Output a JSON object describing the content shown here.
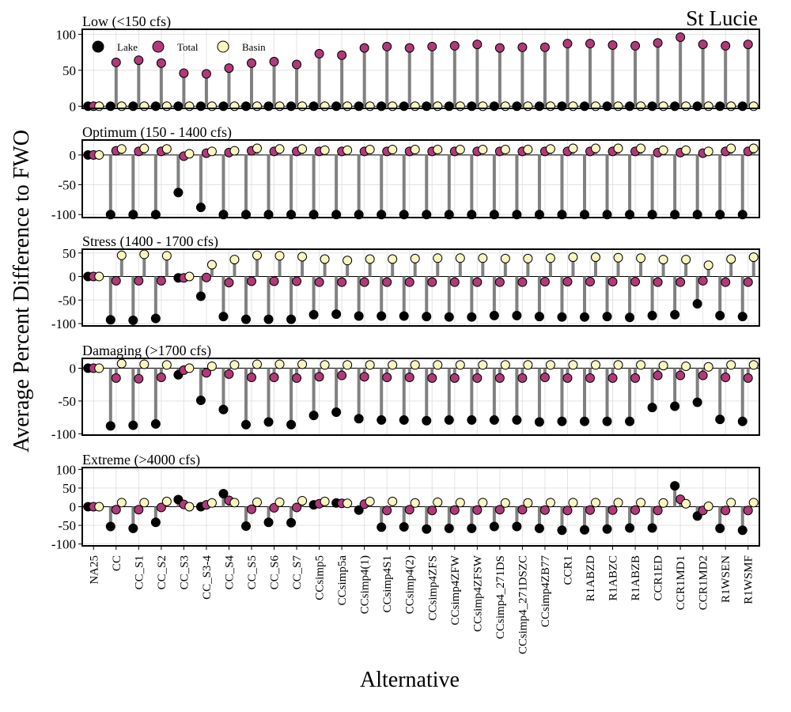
{
  "figure_title": "St Lucie",
  "ylabel": "Average Percent Difference to FWO",
  "xlabel": "Alternative",
  "chart_data": {
    "type": "lollipop",
    "title": "St Lucie",
    "xlabel": "Alternative",
    "ylabel": "Average Percent Difference to FWO",
    "grid": true,
    "legend_placement": "top-left",
    "categories": [
      "NA25",
      "CC",
      "CC_S1",
      "CC_S2",
      "CC_S3",
      "CC_S3-4",
      "CC_S4",
      "CC_S5",
      "CC_S6",
      "CC_S7",
      "CCsimp5",
      "CCsimp5a",
      "CCsimp4(1)",
      "CCsimp4S1",
      "CCsimp4(2)",
      "CCsimp4ZFS",
      "CCsimp4ZFW",
      "CCsimp4ZFSW",
      "CCsimp4_271DS",
      "CCsimp4_271DSZC",
      "CCsimp4ZB77",
      "CCR1",
      "R1ABZD",
      "R1ABZC",
      "R1ABZB",
      "CCR1ED",
      "CCR1MD1",
      "CCR1MD2",
      "R1WSEN",
      "R1WSMF"
    ],
    "series_names": [
      "Lake",
      "Total",
      "Basin"
    ],
    "series_colors": {
      "Lake": "#000000",
      "Total": "#b03a78",
      "Basin": "#fbf5c0"
    },
    "panels": [
      {
        "title": "Low (<150 cfs)",
        "ylim": [
          -3,
          107
        ],
        "yticks": [
          0,
          50,
          100
        ],
        "lake": [
          0,
          0,
          0,
          0,
          0,
          0,
          0,
          0,
          0,
          0,
          0,
          0,
          0,
          0,
          0,
          0,
          0,
          0,
          0,
          0,
          0,
          0,
          0,
          0,
          0,
          0,
          0,
          0,
          0,
          0
        ],
        "total": [
          0,
          61,
          64,
          60,
          46,
          45,
          53,
          60,
          62,
          58,
          73,
          71,
          81,
          83,
          81,
          83,
          84,
          86,
          81,
          82,
          82,
          87,
          87,
          85,
          84,
          88,
          96,
          86,
          84,
          86
        ],
        "basin": [
          0,
          0,
          0,
          0,
          0,
          0,
          0,
          0,
          0,
          0,
          0,
          0,
          0,
          0,
          0,
          0,
          0,
          0,
          0,
          0,
          0,
          0,
          0,
          0,
          0,
          0,
          0,
          0,
          0,
          0
        ]
      },
      {
        "title": "Optimum (150 - 1400 cfs)",
        "ylim": [
          -105,
          25
        ],
        "yticks": [
          -100,
          -50,
          0
        ],
        "lake": [
          0,
          -100,
          -100,
          -100,
          -63,
          -88,
          -100,
          -100,
          -100,
          -100,
          -100,
          -100,
          -100,
          -100,
          -100,
          -100,
          -100,
          -100,
          -100,
          -100,
          -100,
          -100,
          -100,
          -100,
          -100,
          -100,
          -100,
          -100,
          -100,
          -100
        ],
        "total": [
          0,
          7,
          6,
          6,
          -2,
          3,
          4,
          7,
          6,
          6,
          6,
          6,
          6,
          6,
          6,
          6,
          6,
          6,
          6,
          6,
          6,
          6,
          6,
          6,
          6,
          4,
          4,
          3,
          6,
          6
        ],
        "basin": [
          0,
          10,
          11,
          10,
          2,
          6,
          7,
          11,
          10,
          10,
          8,
          8,
          9,
          9,
          9,
          9,
          9,
          9,
          9,
          9,
          10,
          11,
          11,
          11,
          11,
          8,
          8,
          6,
          11,
          11
        ]
      },
      {
        "title": "Stress (1400 - 1700 cfs)",
        "ylim": [
          -105,
          58
        ],
        "yticks": [
          -100,
          -50,
          0,
          50
        ],
        "lake": [
          0,
          -92,
          -93,
          -89,
          -3,
          -42,
          -85,
          -91,
          -91,
          -91,
          -81,
          -80,
          -84,
          -84,
          -84,
          -85,
          -86,
          -86,
          -83,
          -83,
          -85,
          -86,
          -86,
          -85,
          -87,
          -83,
          -81,
          -58,
          -83,
          -85
        ],
        "total": [
          0,
          -9,
          -9,
          -9,
          -3,
          -2,
          -13,
          -10,
          -10,
          -10,
          -12,
          -12,
          -12,
          -12,
          -12,
          -12,
          -12,
          -12,
          -12,
          -12,
          -11,
          -11,
          -11,
          -11,
          -11,
          -12,
          -12,
          -9,
          -12,
          -12
        ],
        "basin": [
          0,
          45,
          47,
          44,
          0,
          25,
          36,
          45,
          44,
          42,
          37,
          34,
          37,
          37,
          38,
          39,
          39,
          39,
          38,
          38,
          39,
          41,
          41,
          40,
          39,
          36,
          36,
          24,
          37,
          41
        ]
      },
      {
        "title": "Damaging (>1700 cfs)",
        "ylim": [
          -102,
          15
        ],
        "yticks": [
          -100,
          -50,
          0
        ],
        "lake": [
          0,
          -88,
          -87,
          -85,
          -10,
          -49,
          -63,
          -86,
          -82,
          -86,
          -72,
          -67,
          -77,
          -79,
          -79,
          -80,
          -79,
          -79,
          -79,
          -79,
          -82,
          -81,
          -81,
          -81,
          -81,
          -60,
          -58,
          -52,
          -78,
          -81
        ],
        "total": [
          0,
          -15,
          -16,
          -14,
          -3,
          -7,
          -9,
          -14,
          -14,
          -15,
          -13,
          -11,
          -13,
          -14,
          -14,
          -15,
          -15,
          -15,
          -15,
          -15,
          -14,
          -15,
          -15,
          -15,
          -15,
          -11,
          -11,
          -11,
          -14,
          -15
        ],
        "basin": [
          0,
          7,
          6,
          5,
          0,
          3,
          5,
          6,
          6,
          6,
          5,
          5,
          5,
          5,
          5,
          5,
          5,
          5,
          5,
          5,
          5,
          5,
          5,
          5,
          5,
          4,
          3,
          2,
          5,
          5
        ]
      },
      {
        "title": "Extreme (>4000 cfs)",
        "ylim": [
          -105,
          105
        ],
        "yticks": [
          -100,
          -50,
          0,
          50,
          100
        ],
        "lake": [
          0,
          -53,
          -58,
          -42,
          19,
          0,
          35,
          -52,
          -42,
          -43,
          5,
          10,
          -9,
          -55,
          -54,
          -60,
          -58,
          -58,
          -53,
          -53,
          -58,
          -63,
          -62,
          -60,
          -57,
          -57,
          56,
          -25,
          -58,
          -63
        ],
        "total": [
          0,
          -8,
          -8,
          -2,
          6,
          5,
          17,
          -7,
          -3,
          -2,
          8,
          9,
          7,
          -10,
          -8,
          -10,
          -9,
          -9,
          -8,
          -8,
          -9,
          -10,
          -9,
          -9,
          -9,
          -10,
          20,
          -10,
          -10,
          -10
        ],
        "basin": [
          0,
          11,
          11,
          14,
          0,
          10,
          11,
          12,
          12,
          16,
          14,
          9,
          14,
          14,
          10,
          12,
          11,
          11,
          10,
          10,
          11,
          11,
          11,
          11,
          11,
          10,
          8,
          1,
          11,
          11
        ]
      }
    ]
  }
}
